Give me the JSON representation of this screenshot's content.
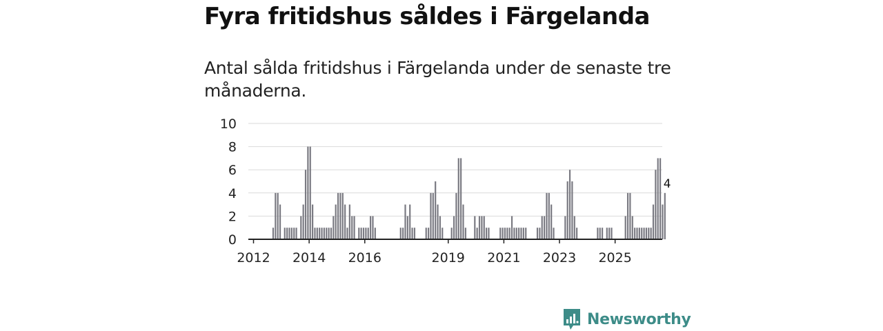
{
  "title": "Fyra fritidshus såldes i Färgelanda",
  "subtitle": "Antal sålda fritidshus i Färgelanda under de senaste tre månaderna.",
  "chart_data": {
    "type": "bar",
    "title": "Fyra fritidshus såldes i Färgelanda",
    "xlabel": "",
    "ylabel": "",
    "ylim": [
      0,
      10
    ],
    "yticks": [
      0,
      2,
      4,
      6,
      8,
      10
    ],
    "start": "2012-01",
    "interval": "month",
    "xtick_labels": [
      {
        "label": "2012",
        "index": 0
      },
      {
        "label": "2014",
        "index": 24
      },
      {
        "label": "2016",
        "index": 48
      },
      {
        "label": "2019",
        "index": 84
      },
      {
        "label": "2021",
        "index": 108
      },
      {
        "label": "2023",
        "index": 132
      },
      {
        "label": "2025",
        "index": 156
      }
    ],
    "values": [
      0,
      0,
      0,
      0,
      0,
      0,
      0,
      0,
      1,
      4,
      4,
      3,
      0,
      1,
      1,
      1,
      1,
      1,
      1,
      0,
      2,
      3,
      6,
      8,
      8,
      3,
      1,
      1,
      1,
      1,
      1,
      1,
      1,
      1,
      2,
      3,
      4,
      4,
      4,
      3,
      1,
      3,
      2,
      2,
      0,
      1,
      1,
      1,
      1,
      1,
      2,
      2,
      1,
      0,
      0,
      0,
      0,
      0,
      0,
      0,
      0,
      0,
      0,
      1,
      1,
      3,
      2,
      3,
      1,
      1,
      0,
      0,
      0,
      0,
      1,
      1,
      4,
      4,
      5,
      3,
      2,
      1,
      0,
      0,
      0,
      1,
      2,
      4,
      7,
      7,
      3,
      1,
      0,
      0,
      0,
      2,
      1,
      2,
      2,
      2,
      1,
      1,
      0,
      0,
      0,
      0,
      1,
      1,
      1,
      1,
      1,
      2,
      1,
      1,
      1,
      1,
      1,
      1,
      0,
      0,
      0,
      0,
      1,
      1,
      2,
      2,
      4,
      4,
      3,
      1,
      0,
      0,
      0,
      0,
      2,
      5,
      6,
      5,
      2,
      1,
      0,
      0,
      0,
      0,
      0,
      0,
      0,
      0,
      1,
      1,
      1,
      0,
      1,
      1,
      1,
      0,
      0,
      0,
      0,
      0,
      2,
      4,
      4,
      2,
      1,
      1,
      1,
      1,
      1,
      1,
      1,
      1,
      3,
      6,
      7,
      7,
      3,
      4
    ],
    "highlight": {
      "index": 178,
      "value": 4,
      "label": "4"
    },
    "series_color": "#7a7a82",
    "highlight_color": "#1a9c95"
  },
  "branding": {
    "name": "Newsworthy",
    "color": "#3d8c88"
  }
}
